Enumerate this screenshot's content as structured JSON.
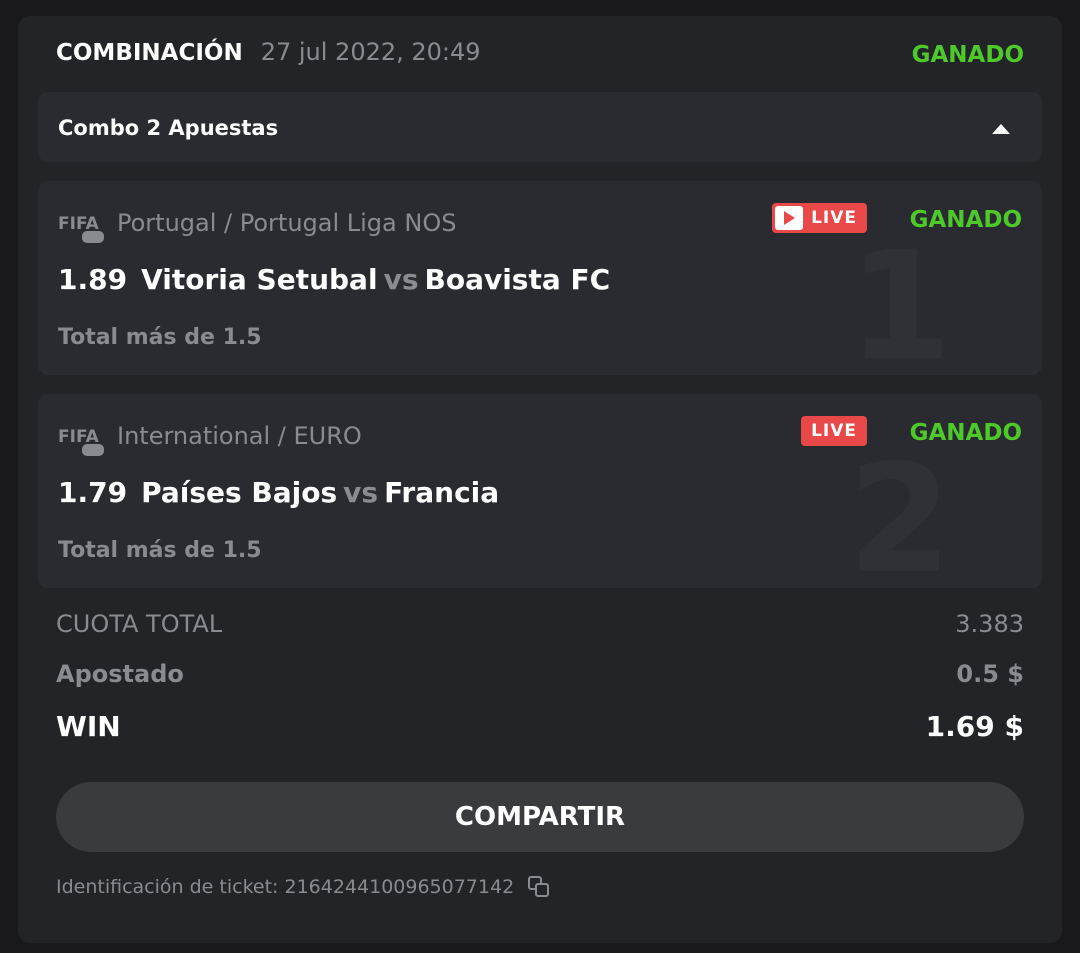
{
  "header": {
    "title": "COMBINACIÓN",
    "date": "27 jul 2022, 20:49",
    "status": "GANADO"
  },
  "combo": {
    "label": "Combo 2 Apuestas"
  },
  "bets": [
    {
      "index": "1",
      "league": "Portugal / Portugal Liga NOS",
      "live": "LIVE",
      "status": "GANADO",
      "odd": "1.89",
      "home": "Vitoria Setubal",
      "vs": "vs",
      "away": "Boavista FC",
      "market": "Total más de 1.5"
    },
    {
      "index": "2",
      "league": "International / EURO",
      "live": "LIVE",
      "status": "GANADO",
      "odd": "1.79",
      "home": "Países Bajos",
      "vs": "vs",
      "away": "Francia",
      "market": "Total más de 1.5"
    }
  ],
  "summary": {
    "total_label": "CUOTA TOTAL",
    "total_value": "3.383",
    "staked_label": "Apostado",
    "staked_value": "0.5 $",
    "win_label": "WIN",
    "win_value": "1.69 $"
  },
  "share_label": "COMPARTIR",
  "ticket": {
    "label": "Identificación de ticket: 2164244100965077142"
  },
  "colors": {
    "won": "#4ec92a",
    "live": "#e94848"
  }
}
